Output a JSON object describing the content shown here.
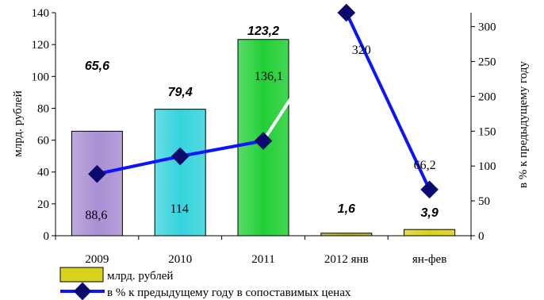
{
  "chart_data": {
    "type": "bar",
    "categories": [
      "2009",
      "2010",
      "2011",
      "2012 янв",
      "ян-фев"
    ],
    "series": [
      {
        "name": "млрд. рублей",
        "type": "bar",
        "axis": "left",
        "values": [
          65.6,
          79.4,
          123.2,
          1.6,
          3.9
        ],
        "labels": [
          "65,6",
          "79,4",
          "123,2",
          "1,6",
          "3,9"
        ],
        "colors": [
          "#a98fd3",
          "#35d3dc",
          "#22cf35",
          "#b8b21a",
          "#d8d21c"
        ]
      },
      {
        "name": "в % к предыдущему году в сопоставимых ценах",
        "type": "line",
        "axis": "right",
        "values": [
          88.6,
          114,
          136.1,
          320,
          66.2
        ],
        "labels": [
          "88,6",
          "114",
          "136,1",
          "320",
          "66,2"
        ],
        "color": "#0a14ff"
      }
    ],
    "y_left": {
      "label": "млрд. рублей",
      "ylim": [
        0,
        140
      ],
      "ticks": [
        0,
        20,
        40,
        60,
        80,
        100,
        120,
        140
      ]
    },
    "y_right": {
      "label": "в % к предыдущему году",
      "ylim": [
        0,
        320
      ],
      "ticks": [
        0,
        50,
        100,
        150,
        200,
        250,
        300
      ]
    },
    "legend": {
      "placement": "bottom-left",
      "bar_label": "млрд. рублей",
      "line_label": "в % к предыдущему году в сопоставимых ценах"
    }
  }
}
